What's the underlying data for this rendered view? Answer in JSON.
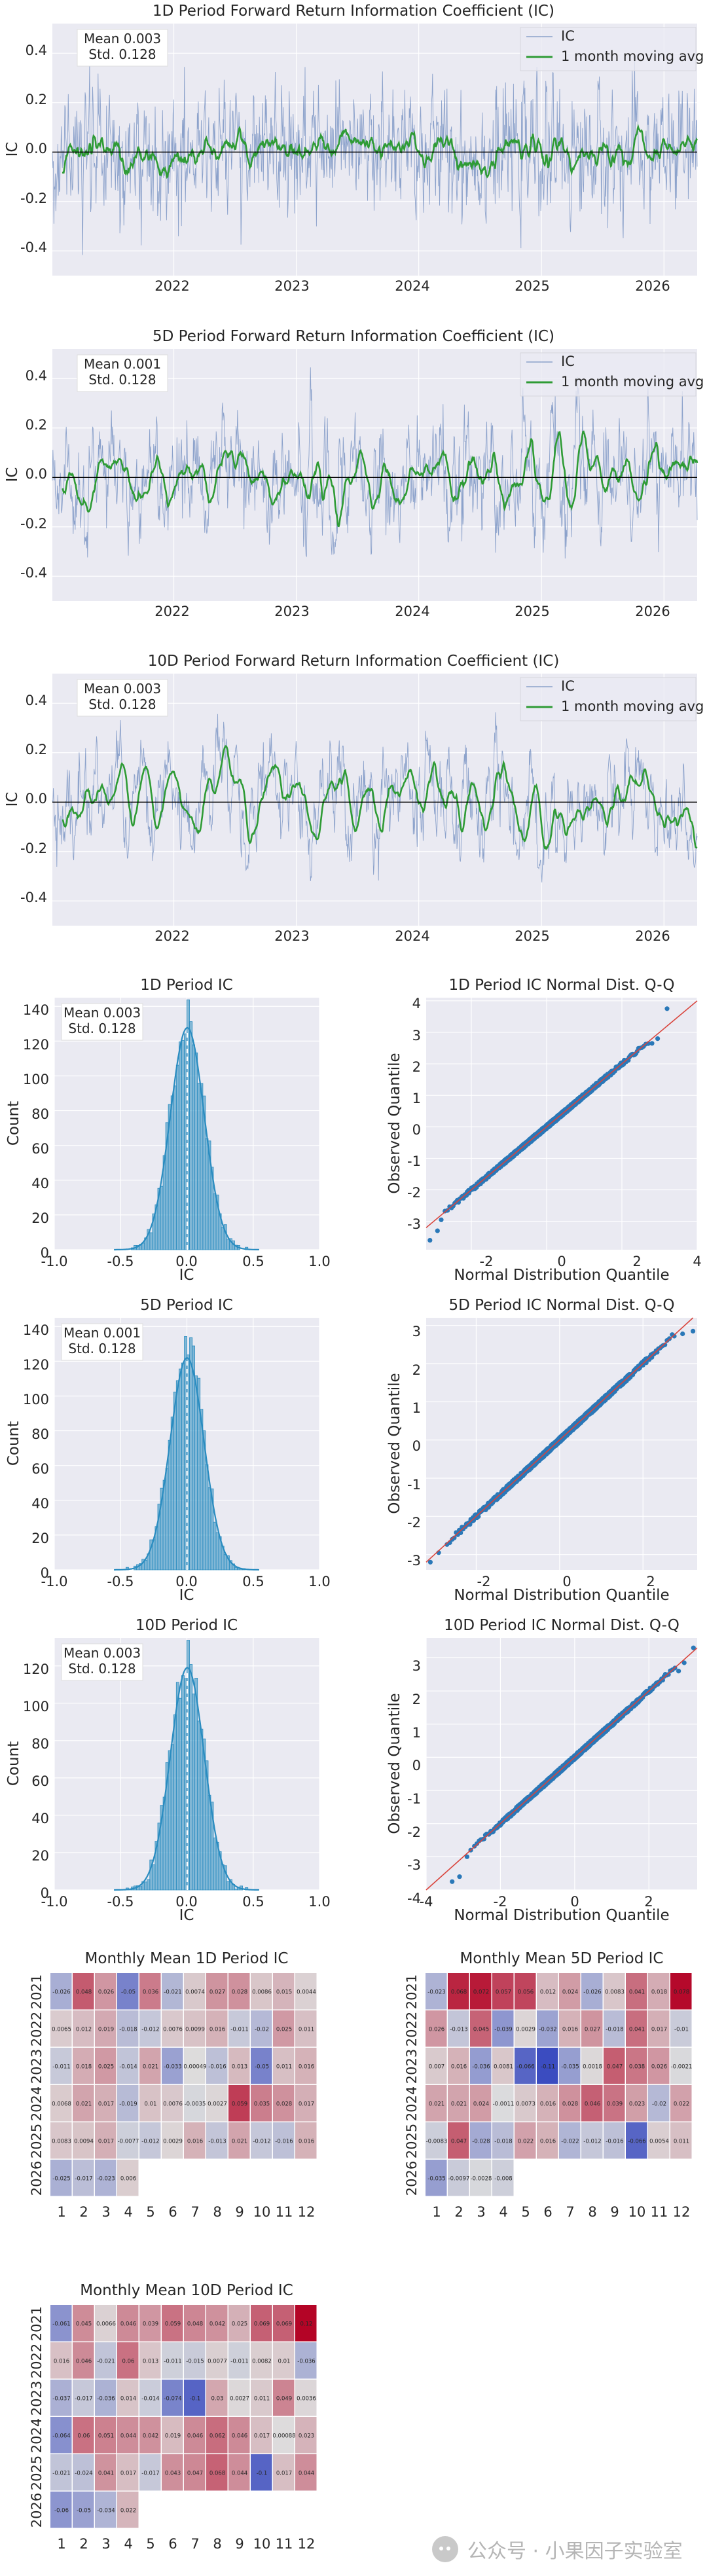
{
  "chart_data": [
    {
      "type": "line",
      "title": "1D Period Forward Return Information Coefficient (IC)",
      "ylabel": "IC",
      "xlabel": "",
      "x_range": [
        "2021-01-04",
        "2026-04-10"
      ],
      "x_ticks": [
        "2022",
        "2023",
        "2024",
        "2025",
        "2026"
      ],
      "y_ticks": [
        "0.4",
        "0.2",
        "0.0",
        "-0.2",
        "-0.4"
      ],
      "ylim": [
        -0.5,
        0.52
      ],
      "grid": true,
      "legend_position": "top-right",
      "legend": [
        "IC",
        "1 month moving avg"
      ],
      "stats": [
        "Mean 0.003",
        "Std. 0.128"
      ],
      "ic_series": {
        "mean": 0.003,
        "std": 0.128,
        "smoothing_days": 0.7,
        "colors": {
          "ic": "#4c72b0",
          "ma": "#2e9b35"
        }
      },
      "moving_avg_series": {
        "window": 21
      }
    },
    {
      "type": "line",
      "title": "5D Period Forward Return Information Coefficient (IC)",
      "ylabel": "IC",
      "xlabel": "",
      "x_range": [
        "2021-01-04",
        "2026-04-10"
      ],
      "x_ticks": [
        "2022",
        "2023",
        "2024",
        "2025",
        "2026"
      ],
      "y_ticks": [
        "0.4",
        "0.2",
        "0.0",
        "-0.2",
        "-0.4"
      ],
      "ylim": [
        -0.5,
        0.52
      ],
      "grid": true,
      "legend_position": "top-right",
      "legend": [
        "IC",
        "1 month moving avg"
      ],
      "stats": [
        "Mean 0.001",
        "Std. 0.128"
      ],
      "ic_series": {
        "mean": 0.001,
        "std": 0.128,
        "smoothing_days": 3,
        "colors": {
          "ic": "#4c72b0",
          "ma": "#2e9b35"
        }
      },
      "moving_avg_series": {
        "window": 21
      }
    },
    {
      "type": "line",
      "title": "10D Period Forward Return Information Coefficient (IC)",
      "ylabel": "IC",
      "xlabel": "",
      "x_range": [
        "2021-01-04",
        "2026-04-10"
      ],
      "x_ticks": [
        "2022",
        "2023",
        "2024",
        "2025",
        "2026"
      ],
      "y_ticks": [
        "0.4",
        "0.2",
        "0.0",
        "-0.2",
        "-0.4"
      ],
      "ylim": [
        -0.5,
        0.52
      ],
      "grid": true,
      "legend_position": "top-right",
      "legend": [
        "IC",
        "1 month moving avg"
      ],
      "stats": [
        "Mean 0.003",
        "Std. 0.128"
      ],
      "ic_series": {
        "mean": 0.003,
        "std": 0.128,
        "smoothing_days": 6,
        "colors": {
          "ic": "#4c72b0",
          "ma": "#2e9b35"
        }
      },
      "moving_avg_series": {
        "window": 21
      }
    },
    {
      "type": "bar",
      "title": "1D Period IC",
      "xlabel": "IC",
      "ylabel": "Count",
      "xlim": [
        -1.0,
        1.0
      ],
      "ylim": [
        0,
        145
      ],
      "x_ticks": [
        "-1.0",
        "-0.5",
        "0.0",
        "0.5",
        "1.0"
      ],
      "y_ticks": [
        "0",
        "20",
        "40",
        "60",
        "80",
        "100",
        "120",
        "140"
      ],
      "stats": [
        "Mean 0.003",
        "Std. 0.128"
      ],
      "histogram": {
        "bin_width": 0.02,
        "mean": 0.003,
        "std": 0.128,
        "n": 1300,
        "peak": 133,
        "color": "#2a8cc0"
      }
    },
    {
      "type": "scatter",
      "title": "1D Period IC Normal Dist. Q-Q",
      "xlabel": "Normal Distribution Quantile",
      "ylabel": "Observed Quantile",
      "xlim": [
        -3.2,
        4
      ],
      "ylim": [
        -3.9,
        4.1
      ],
      "x_ticks": [
        "-2",
        "0",
        "2",
        "4"
      ],
      "y_ticks": [
        "4",
        "3",
        "2",
        "1",
        "0",
        "-1",
        "-2",
        "-3"
      ],
      "qq": {
        "n": 1300,
        "tail_low": [
          [
            -3.1,
            -3.6
          ],
          [
            -2.9,
            -3.3
          ],
          [
            -2.8,
            -2.95
          ]
        ],
        "tail_high": [
          [
            2.8,
            2.65
          ],
          [
            2.95,
            2.8
          ],
          [
            3.2,
            3.75
          ]
        ],
        "color": "#2a78b8",
        "line_color": "#d9433b"
      }
    },
    {
      "type": "bar",
      "title": "5D Period IC",
      "xlabel": "IC",
      "ylabel": "Count",
      "xlim": [
        -1.0,
        1.0
      ],
      "ylim": [
        0,
        145
      ],
      "x_ticks": [
        "-1.0",
        "-0.5",
        "0.0",
        "0.5",
        "1.0"
      ],
      "y_ticks": [
        "0",
        "20",
        "40",
        "60",
        "80",
        "100",
        "120",
        "140"
      ],
      "stats": [
        "Mean 0.001",
        "Std. 0.128"
      ],
      "histogram": {
        "bin_width": 0.02,
        "mean": 0.001,
        "std": 0.128,
        "n": 1300,
        "peak": 127,
        "color": "#2a8cc0"
      }
    },
    {
      "type": "scatter",
      "title": "5D Period IC Normal Dist. Q-Q",
      "xlabel": "Normal Distribution Quantile",
      "ylabel": "Observed Quantile",
      "xlim": [
        -3.2,
        3.3
      ],
      "ylim": [
        -3.4,
        3.2
      ],
      "x_ticks": [
        "-2",
        "0",
        "2"
      ],
      "y_ticks": [
        "3",
        "2",
        "1",
        "0",
        "-1",
        "-2",
        "-3"
      ],
      "qq": {
        "n": 1300,
        "tail_low": [
          [
            -3.1,
            -3.2
          ],
          [
            -2.9,
            -2.95
          ]
        ],
        "tail_high": [
          [
            2.75,
            2.72
          ],
          [
            2.95,
            2.78
          ],
          [
            3.2,
            2.85
          ]
        ],
        "color": "#2a78b8",
        "line_color": "#d9433b"
      }
    },
    {
      "type": "bar",
      "title": "10D Period IC",
      "xlabel": "IC",
      "ylabel": "Count",
      "xlim": [
        -1.0,
        1.0
      ],
      "ylim": [
        0,
        135
      ],
      "x_ticks": [
        "-1.0",
        "-0.5",
        "0.0",
        "0.5",
        "1.0"
      ],
      "y_ticks": [
        "0",
        "20",
        "40",
        "60",
        "80",
        "100",
        "120"
      ],
      "stats": [
        "Mean 0.003",
        "Std. 0.128"
      ],
      "histogram": {
        "bin_width": 0.02,
        "mean": 0.003,
        "std": 0.128,
        "n": 1300,
        "peak": 124,
        "color": "#2a8cc0"
      }
    },
    {
      "type": "scatter",
      "title": "10D Period IC Normal Dist. Q-Q",
      "xlabel": "Normal Distribution Quantile",
      "ylabel": "Observed Quantile",
      "xlim": [
        -4,
        3.3
      ],
      "ylim": [
        -4.0,
        3.6
      ],
      "x_ticks": [
        "-4",
        "-2",
        "0",
        "2"
      ],
      "y_ticks": [
        "3",
        "2",
        "1",
        "0",
        "-1",
        "-2",
        "-3",
        "-4"
      ],
      "qq": {
        "n": 1300,
        "tail_low": [
          [
            -3.3,
            -3.75
          ],
          [
            -3.1,
            -3.6
          ],
          [
            -2.9,
            -3.0
          ],
          [
            -2.8,
            -2.8
          ]
        ],
        "tail_high": [
          [
            2.8,
            2.6
          ],
          [
            2.95,
            2.85
          ],
          [
            3.2,
            3.3
          ]
        ],
        "color": "#2a78b8",
        "line_color": "#d9433b"
      }
    },
    {
      "type": "heatmap",
      "title": "Monthly Mean 1D Period IC",
      "rows": [
        "2021",
        "2022",
        "2023",
        "2024",
        "2025",
        "2026"
      ],
      "cols": [
        "1",
        "2",
        "3",
        "4",
        "5",
        "6",
        "7",
        "8",
        "9",
        "10",
        "11",
        "12"
      ],
      "vmin": -0.08,
      "vmax": 0.08,
      "values": [
        [
          -0.026,
          0.048,
          0.026,
          -0.05,
          0.036,
          -0.021,
          0.0074,
          0.027,
          0.028,
          0.0086,
          0.015,
          0.0044
        ],
        [
          0.0065,
          0.012,
          0.019,
          -0.018,
          -0.012,
          0.0076,
          0.0099,
          0.016,
          -0.011,
          -0.02,
          0.025,
          0.011
        ],
        [
          -0.011,
          0.018,
          0.025,
          -0.014,
          0.021,
          -0.033,
          0.00049,
          -0.016,
          0.013,
          -0.05,
          0.011,
          0.016
        ],
        [
          0.0068,
          0.021,
          0.017,
          -0.019,
          0.01,
          0.0076,
          -0.0035,
          0.0027,
          0.059,
          0.035,
          0.028,
          0.017
        ],
        [
          0.0083,
          0.0094,
          0.017,
          -0.0077,
          -0.012,
          0.0029,
          0.016,
          -0.013,
          0.021,
          -0.012,
          -0.016,
          0.016
        ],
        [
          -0.025,
          -0.017,
          -0.023,
          0.006,
          null,
          null,
          null,
          null,
          null,
          null,
          null,
          null
        ]
      ]
    },
    {
      "type": "heatmap",
      "title": "Monthly Mean 5D Period IC",
      "rows": [
        "2021",
        "2022",
        "2023",
        "2024",
        "2025",
        "2026"
      ],
      "cols": [
        "1",
        "2",
        "3",
        "4",
        "5",
        "6",
        "7",
        "8",
        "9",
        "10",
        "11",
        "12"
      ],
      "vmin": -0.08,
      "vmax": 0.08,
      "values": [
        [
          -0.023,
          0.068,
          0.072,
          0.057,
          0.056,
          0.012,
          0.024,
          -0.026,
          0.0083,
          0.041,
          0.018,
          0.078
        ],
        [
          0.026,
          -0.013,
          0.045,
          -0.039,
          0.0029,
          -0.032,
          0.016,
          0.027,
          -0.018,
          0.041,
          0.017,
          -0.01
        ],
        [
          0.007,
          0.016,
          -0.036,
          0.0081,
          -0.066,
          -0.11,
          -0.035,
          0.0018,
          0.047,
          0.038,
          0.026,
          -0.0021
        ],
        [
          0.021,
          0.021,
          0.024,
          -0.0011,
          0.0073,
          0.016,
          0.028,
          0.046,
          0.039,
          0.023,
          -0.02,
          0.022
        ],
        [
          -0.0083,
          0.047,
          -0.028,
          -0.018,
          0.022,
          0.016,
          -0.022,
          -0.012,
          -0.016,
          -0.066,
          0.0054,
          0.011
        ],
        [
          -0.035,
          -0.0097,
          -0.0028,
          -0.008,
          null,
          null,
          null,
          null,
          null,
          null,
          null,
          null
        ]
      ]
    },
    {
      "type": "heatmap",
      "title": "Monthly Mean 10D Period IC",
      "rows": [
        "2021",
        "2022",
        "2023",
        "2024",
        "2025",
        "2026"
      ],
      "cols": [
        "1",
        "2",
        "3",
        "4",
        "5",
        "6",
        "7",
        "8",
        "9",
        "10",
        "11",
        "12"
      ],
      "vmin": -0.12,
      "vmax": 0.12,
      "values": [
        [
          -0.061,
          0.045,
          0.0066,
          0.046,
          0.039,
          0.059,
          0.048,
          0.042,
          0.025,
          0.069,
          0.069,
          0.12
        ],
        [
          0.016,
          0.046,
          -0.021,
          0.06,
          0.013,
          -0.011,
          -0.015,
          0.0077,
          -0.011,
          0.0082,
          0.01,
          -0.036
        ],
        [
          -0.037,
          -0.017,
          -0.036,
          0.014,
          -0.014,
          -0.074,
          -0.1,
          0.03,
          0.0027,
          0.011,
          0.049,
          0.0036
        ],
        [
          -0.064,
          0.06,
          0.051,
          0.044,
          0.042,
          0.019,
          0.046,
          0.062,
          0.046,
          0.017,
          0.00088,
          0.023
        ],
        [
          -0.021,
          -0.024,
          0.041,
          0.017,
          -0.017,
          0.043,
          0.047,
          0.068,
          0.044,
          -0.1,
          0.017,
          0.044
        ],
        [
          -0.06,
          -0.05,
          -0.034,
          0.022,
          null,
          null,
          null,
          null,
          null,
          null,
          null,
          null
        ]
      ]
    }
  ],
  "watermark": "公众号 · 小果因子实验室"
}
